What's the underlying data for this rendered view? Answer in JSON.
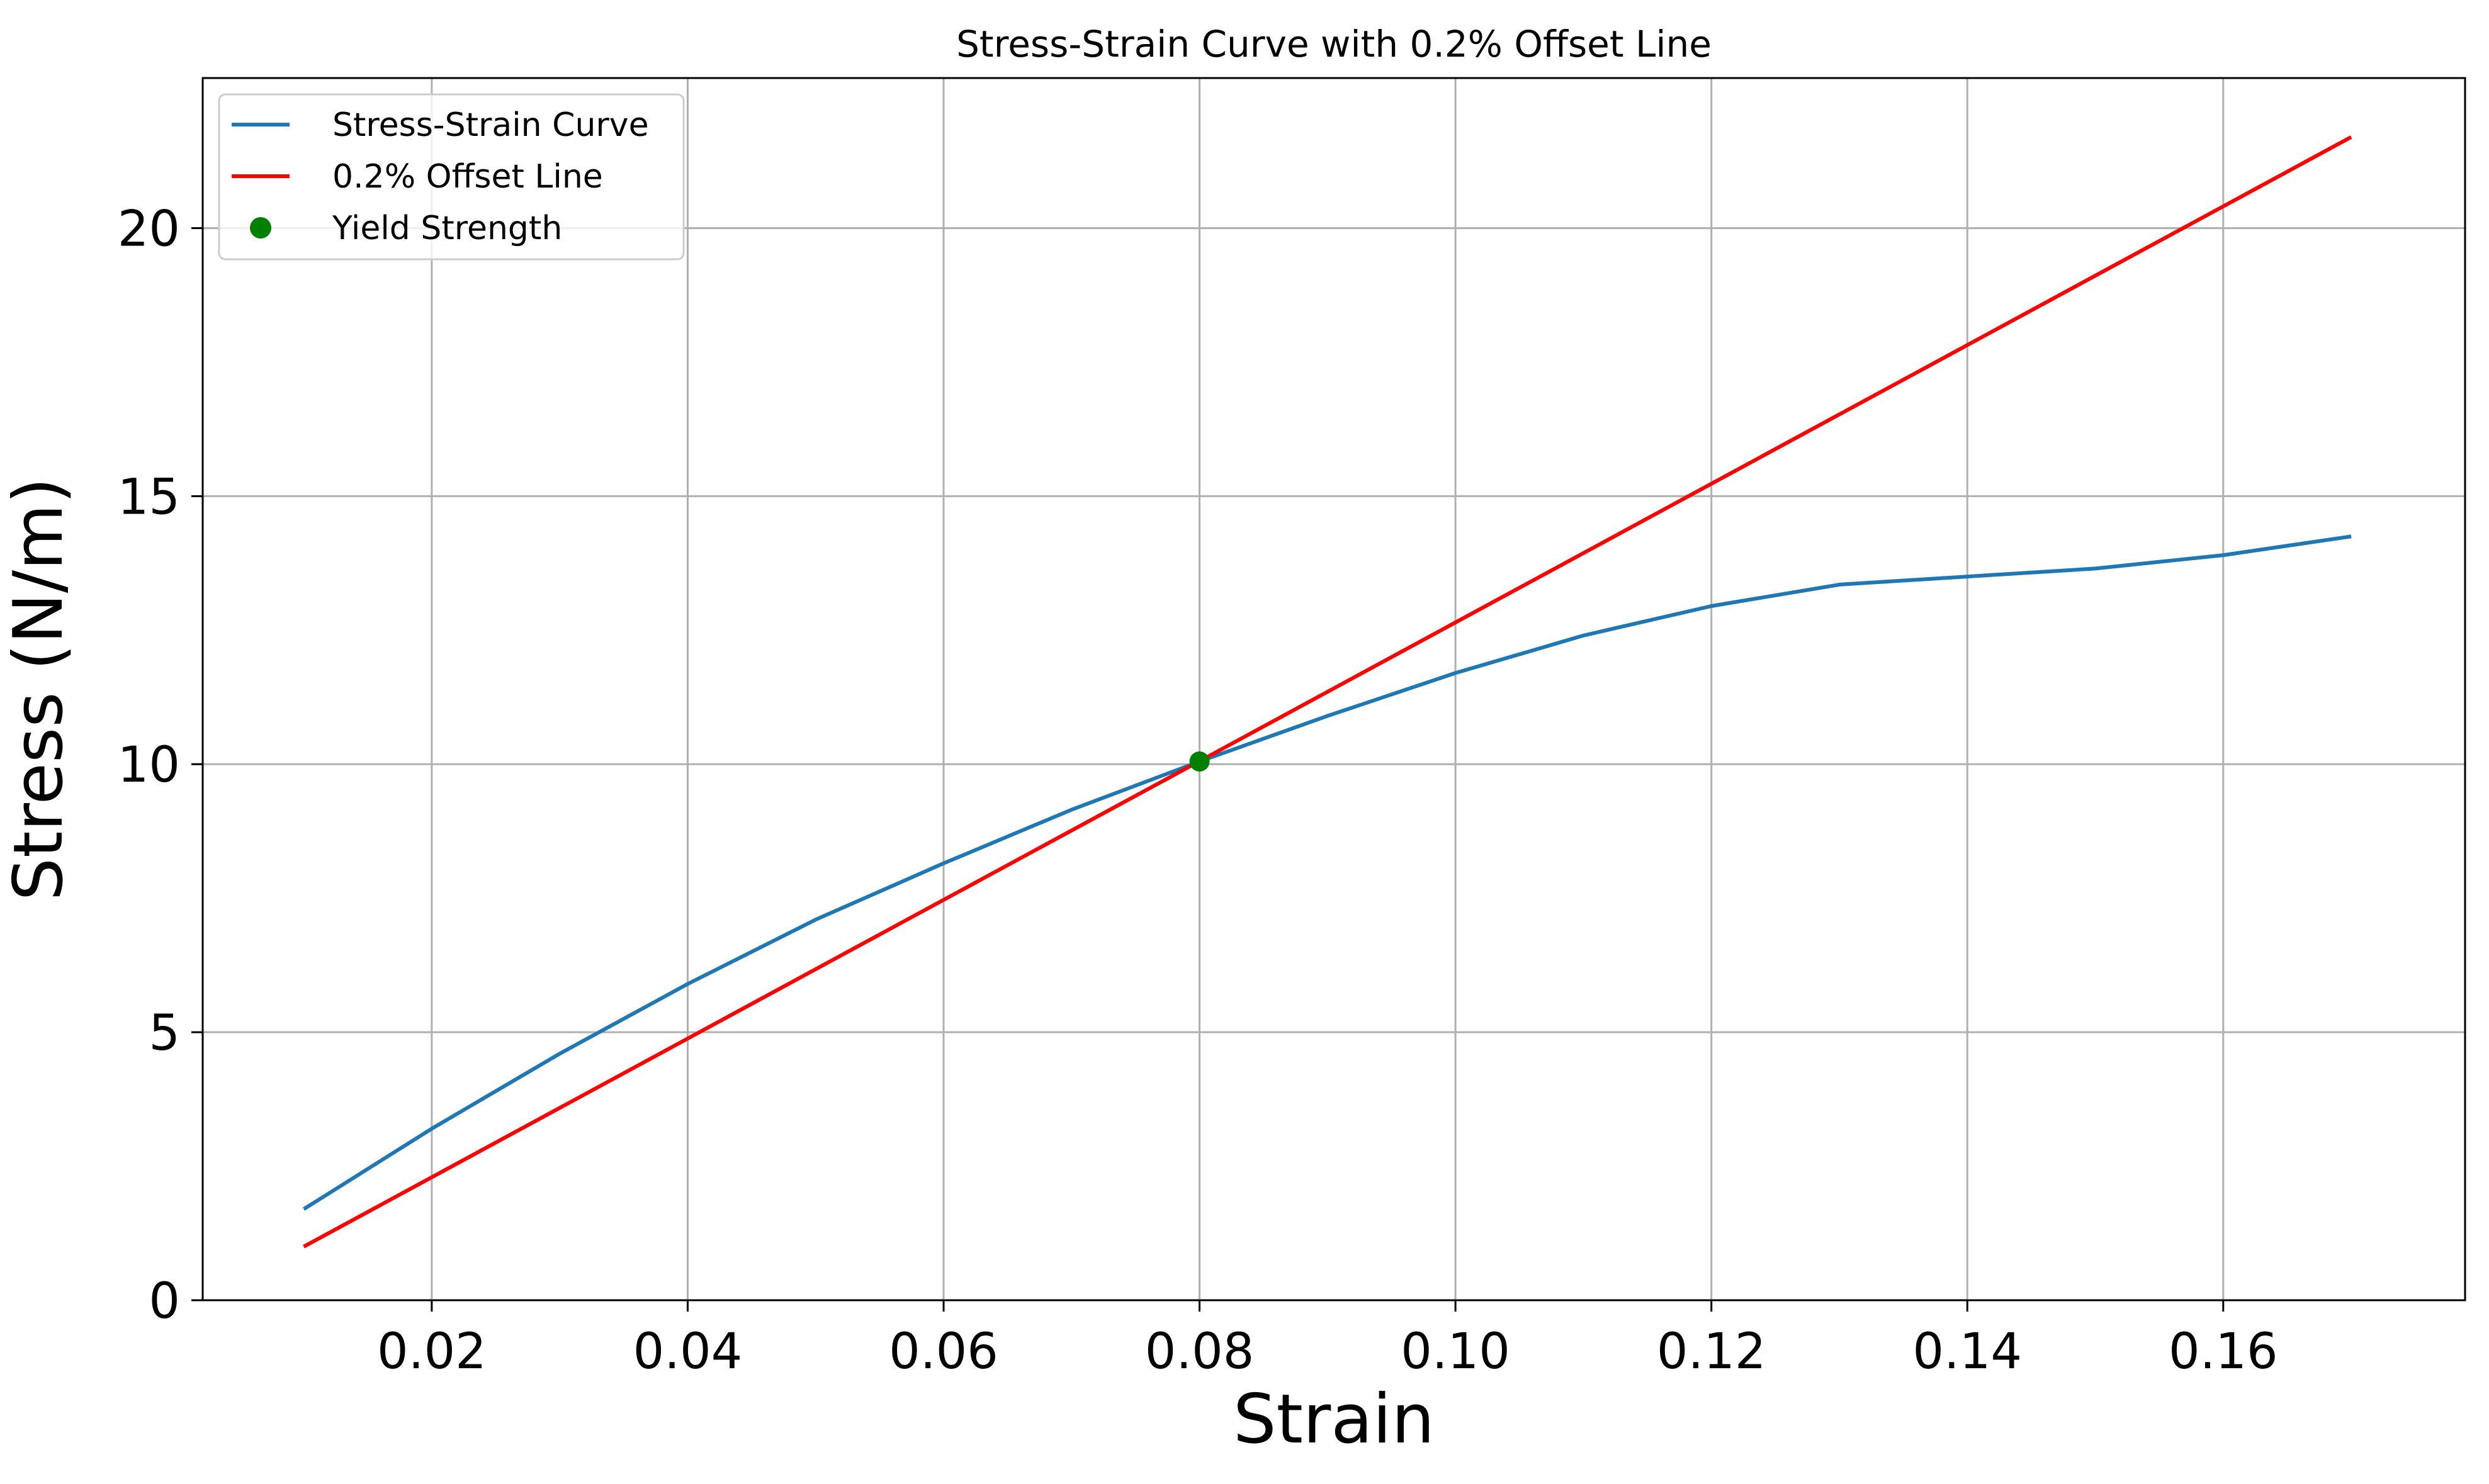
{
  "chart_data": {
    "type": "line",
    "title": "Stress-Strain Curve with 0.2% Offset Line",
    "xlabel": "Strain",
    "ylabel": "Stress (N/m)",
    "xlim": [
      0.0021,
      0.1789
    ],
    "ylim": [
      0,
      22.8
    ],
    "xticks": [
      0.02,
      0.04,
      0.06,
      0.08,
      0.1,
      0.12,
      0.14,
      0.16
    ],
    "xtick_labels": [
      "0.02",
      "0.04",
      "0.06",
      "0.08",
      "0.10",
      "0.12",
      "0.14",
      "0.16"
    ],
    "yticks": [
      0,
      5,
      10,
      15,
      20
    ],
    "ytick_labels": [
      "0",
      "5",
      "10",
      "15",
      "20"
    ],
    "grid": true,
    "legend_position": "top-left",
    "series": [
      {
        "name": "Stress-Strain Curve",
        "kind": "line",
        "color": "#1f77b4",
        "x": [
          0.01,
          0.02,
          0.03,
          0.04,
          0.05,
          0.06,
          0.07,
          0.08,
          0.09,
          0.1,
          0.11,
          0.12,
          0.13,
          0.14,
          0.15,
          0.16,
          0.17
        ],
        "y": [
          1.7,
          3.2,
          4.6,
          5.9,
          7.1,
          8.15,
          9.15,
          10.05,
          10.9,
          11.7,
          12.4,
          12.95,
          13.35,
          13.5,
          13.65,
          13.9,
          14.25
        ]
      },
      {
        "name": "0.2% Offset Line",
        "kind": "line",
        "color": "#ff0000",
        "x": [
          0.01,
          0.17
        ],
        "y": [
          1.0,
          21.7
        ]
      },
      {
        "name": "Yield Strength",
        "kind": "scatter",
        "color": "#008000",
        "x": [
          0.08
        ],
        "y": [
          10.05
        ]
      }
    ]
  }
}
